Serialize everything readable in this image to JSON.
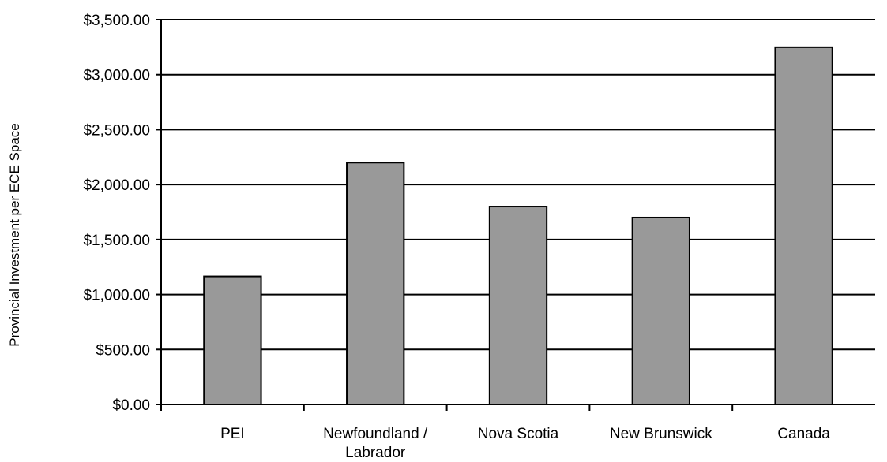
{
  "chart_data": {
    "type": "bar",
    "title": "",
    "xlabel": "",
    "ylabel": "Provincial Investment per ECE Space",
    "categories": [
      [
        "PEI"
      ],
      [
        "Newfoundland /",
        "Labrador"
      ],
      [
        "Nova Scotia"
      ],
      [
        "New Brunswick"
      ],
      [
        "Canada"
      ]
    ],
    "values": [
      1165,
      2200,
      1800,
      1700,
      3250
    ],
    "ylim": [
      0,
      3500
    ],
    "yticks": [
      {
        "value": 0,
        "label": "$0.00"
      },
      {
        "value": 500,
        "label": "$500.00"
      },
      {
        "value": 1000,
        "label": "$1,000.00"
      },
      {
        "value": 1500,
        "label": "$1,500.00"
      },
      {
        "value": 2000,
        "label": "$2,000.00"
      },
      {
        "value": 2500,
        "label": "$2,500.00"
      },
      {
        "value": 3000,
        "label": "$3,000.00"
      },
      {
        "value": 3500,
        "label": "$3,500.00"
      }
    ],
    "grid": true,
    "legend": "none",
    "colors": {
      "bar": "#999999",
      "bar_stroke": "#000000",
      "grid": "#000000"
    }
  }
}
